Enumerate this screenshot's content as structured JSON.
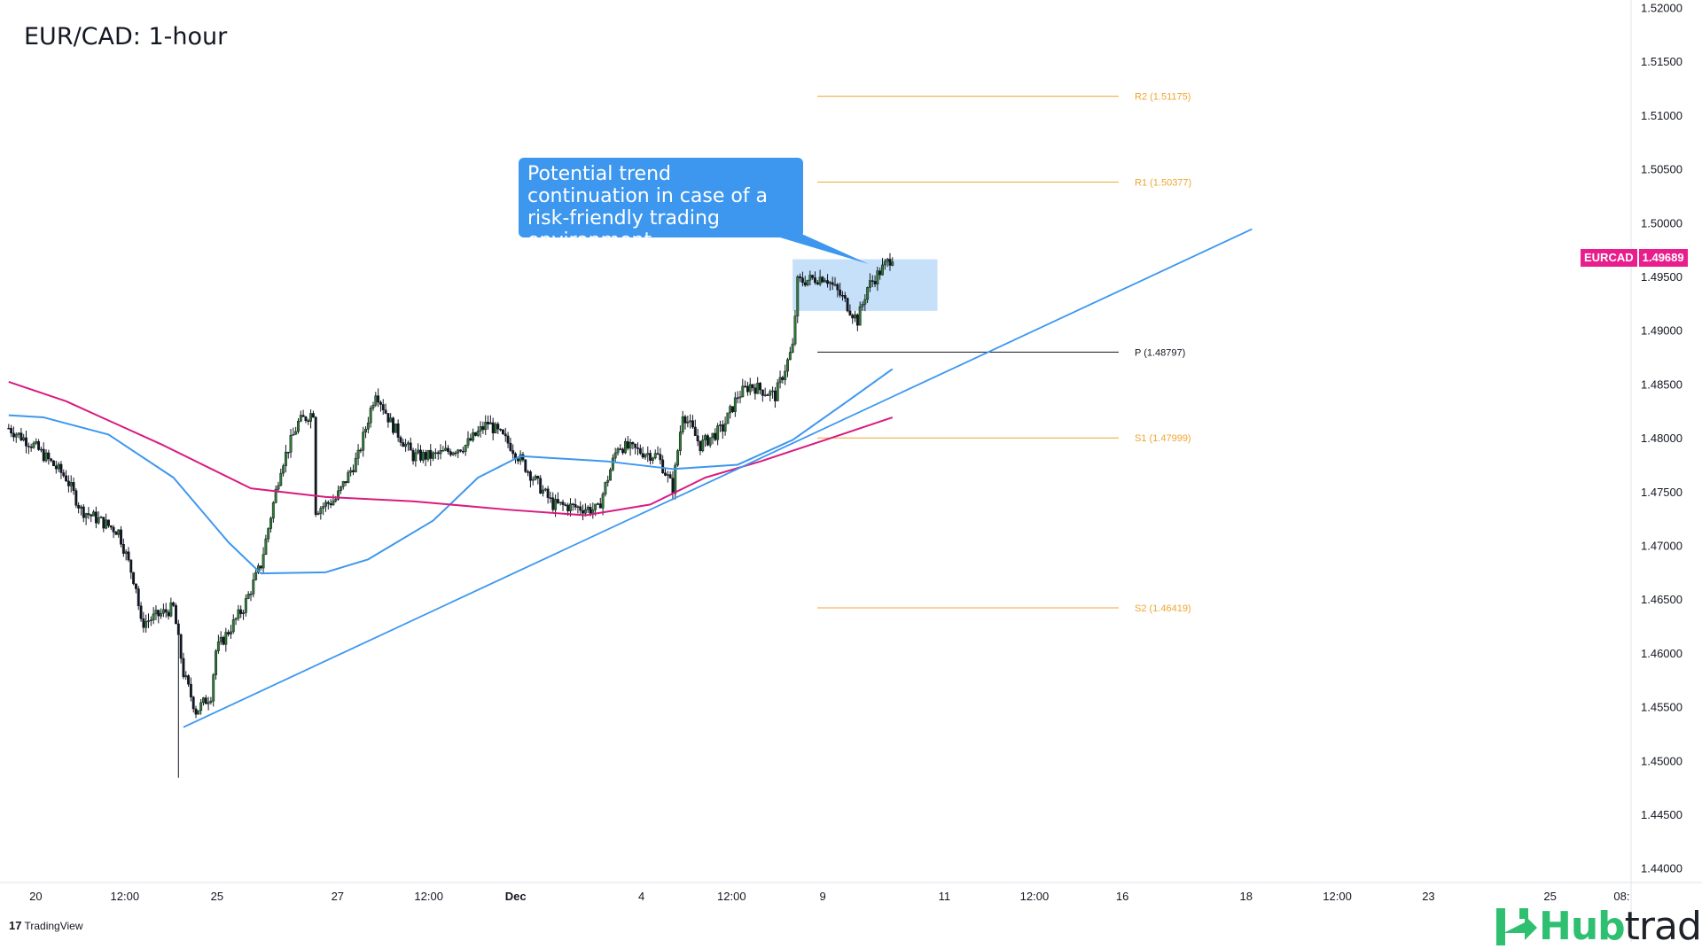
{
  "title": "EUR/CAD: 1-hour",
  "callout": "Potential trend continuation in case of a risk-friendly trading environment",
  "ticker": {
    "symbol": "EURCAD",
    "price": "1.49689",
    "color": "#e91e8c"
  },
  "footer": {
    "tradingview": "TradingView",
    "brand_a": "Hub",
    "brand_b": "trading"
  },
  "chart_data": {
    "type": "candlestick",
    "title": "EUR/CAD: 1-hour",
    "ylim": [
      1.44,
      1.52
    ],
    "y_ticks": [
      "1.52000",
      "1.51500",
      "1.51000",
      "1.50500",
      "1.50000",
      "1.49500",
      "1.49000",
      "1.48500",
      "1.48000",
      "1.47500",
      "1.47000",
      "1.46500",
      "1.46000",
      "1.45500",
      "1.45000",
      "1.44500",
      "1.44000"
    ],
    "x_ticks": [
      "20",
      "12:00",
      "25",
      "27",
      "12:00",
      "Dec",
      "4",
      "12:00",
      "9",
      "11",
      "12:00",
      "16",
      "18",
      "12:00",
      "23",
      "25",
      "08:"
    ],
    "price_path": [
      [
        0,
        1.4809
      ],
      [
        10,
        1.4793
      ],
      [
        23,
        1.4763
      ],
      [
        29,
        1.4733
      ],
      [
        44,
        1.4713
      ],
      [
        51,
        1.4662
      ],
      [
        53,
        1.4627
      ],
      [
        66,
        1.4642
      ],
      [
        70,
        1.4581
      ],
      [
        75,
        1.4546
      ],
      [
        81,
        1.4561
      ],
      [
        83,
        1.4602
      ],
      [
        94,
        1.4642
      ],
      [
        101,
        1.4682
      ],
      [
        109,
        1.4773
      ],
      [
        116,
        1.4814
      ],
      [
        122,
        1.4824
      ],
      [
        123,
        1.4733
      ],
      [
        131,
        1.4743
      ],
      [
        140,
        1.4783
      ],
      [
        147,
        1.4844
      ],
      [
        153,
        1.4814
      ],
      [
        162,
        1.4783
      ],
      [
        170,
        1.4783
      ],
      [
        183,
        1.4793
      ],
      [
        192,
        1.4814
      ],
      [
        201,
        1.4793
      ],
      [
        210,
        1.4763
      ],
      [
        218,
        1.4738
      ],
      [
        236,
        1.4733
      ],
      [
        244,
        1.4793
      ],
      [
        260,
        1.4783
      ],
      [
        266,
        1.4753
      ],
      [
        270,
        1.4824
      ],
      [
        277,
        1.4793
      ],
      [
        286,
        1.4809
      ],
      [
        292,
        1.4839
      ],
      [
        297,
        1.4849
      ],
      [
        307,
        1.4839
      ],
      [
        314,
        1.4884
      ],
      [
        316,
        1.4945
      ],
      [
        327,
        1.495
      ],
      [
        334,
        1.493
      ],
      [
        340,
        1.4909
      ],
      [
        344,
        1.494
      ],
      [
        354,
        1.4969
      ]
    ],
    "spike_low": {
      "bar": 68,
      "price": 1.4484
    },
    "ma_fast": {
      "color": "#3d97ef",
      "points": [
        [
          0,
          1.4821
        ],
        [
          14,
          1.4819
        ],
        [
          40,
          1.4803
        ],
        [
          66,
          1.4763
        ],
        [
          88,
          1.4703
        ],
        [
          101,
          1.4674
        ],
        [
          127,
          1.4675
        ],
        [
          144,
          1.4687
        ],
        [
          170,
          1.4723
        ],
        [
          188,
          1.4763
        ],
        [
          205,
          1.4783
        ],
        [
          240,
          1.4778
        ],
        [
          266,
          1.4771
        ],
        [
          292,
          1.4775
        ],
        [
          314,
          1.4798
        ],
        [
          336,
          1.4834
        ],
        [
          354,
          1.4864
        ]
      ]
    },
    "ma_slow": {
      "color": "#d81b7f",
      "points": [
        [
          0,
          1.4852
        ],
        [
          23,
          1.4834
        ],
        [
          62,
          1.4793
        ],
        [
          97,
          1.4753
        ],
        [
          127,
          1.4745
        ],
        [
          162,
          1.4741
        ],
        [
          201,
          1.4733
        ],
        [
          231,
          1.4728
        ],
        [
          257,
          1.4738
        ],
        [
          279,
          1.4763
        ],
        [
          301,
          1.4778
        ],
        [
          327,
          1.4798
        ],
        [
          354,
          1.4819
        ]
      ]
    },
    "trendline": {
      "color": "#3d97ef",
      "from": [
        70,
        1.4531
      ],
      "to": [
        498,
        1.4994
      ]
    },
    "zone": {
      "from_bar": 314,
      "to_bar": 372,
      "top": 1.4966,
      "bottom": 1.4918,
      "color": "#bcdaf8"
    },
    "pivots": [
      {
        "label": "R2 (1.51175)",
        "price": 1.51175,
        "color": "#f0a531"
      },
      {
        "label": "R1 (1.50377)",
        "price": 1.50377,
        "color": "#f0a531"
      },
      {
        "label": "P (1.48797)",
        "price": 1.48797,
        "color": "#131722"
      },
      {
        "label": "S1 (1.47999)",
        "price": 1.47999,
        "color": "#f0a531"
      },
      {
        "label": "S2 (1.46419)",
        "price": 1.46419,
        "color": "#f0a531"
      }
    ]
  }
}
